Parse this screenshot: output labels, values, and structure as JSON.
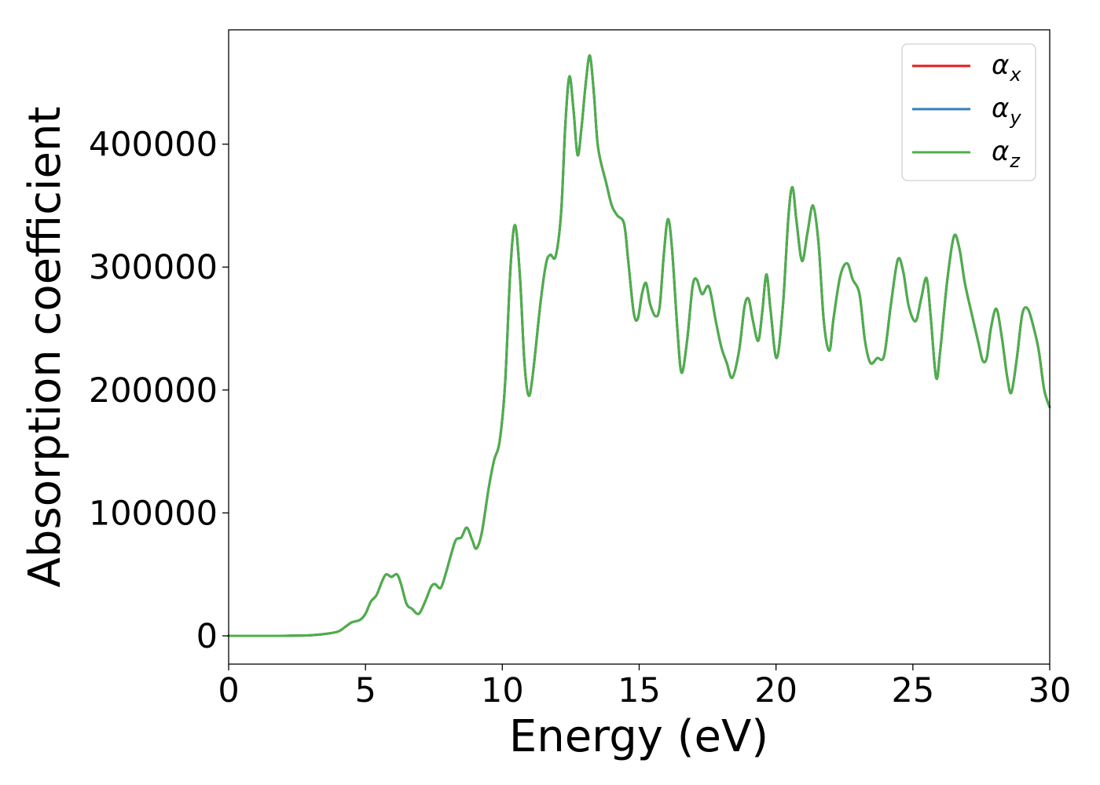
{
  "chart_data": {
    "type": "line",
    "title": "",
    "xlabel": "Energy (eV)",
    "ylabel": "Absorption coefficient",
    "xlim": [
      0,
      30
    ],
    "ylim": [
      -23000,
      493000
    ],
    "xticks": [
      0,
      5,
      10,
      15,
      20,
      25,
      30
    ],
    "yticks": [
      0,
      100000,
      200000,
      300000,
      400000
    ],
    "grid": false,
    "legend_position": "top-right",
    "series": [
      {
        "name": "α",
        "subscript": "x",
        "color": "#e41a1c",
        "ref": "z"
      },
      {
        "name": "α",
        "subscript": "y",
        "color": "#377eb8",
        "ref": "z"
      },
      {
        "name": "α",
        "subscript": "z",
        "color": "#4daf4a",
        "points": [
          [
            0,
            0
          ],
          [
            1,
            0
          ],
          [
            2,
            0
          ],
          [
            2.5,
            200
          ],
          [
            3,
            500
          ],
          [
            3.5,
            1500
          ],
          [
            4,
            3500
          ],
          [
            4.3,
            8000
          ],
          [
            4.5,
            11000
          ],
          [
            4.8,
            13000
          ],
          [
            5,
            18000
          ],
          [
            5.2,
            28000
          ],
          [
            5.4,
            33000
          ],
          [
            5.6,
            44000
          ],
          [
            5.75,
            50000
          ],
          [
            5.95,
            48000
          ],
          [
            6.15,
            50000
          ],
          [
            6.3,
            42000
          ],
          [
            6.5,
            26000
          ],
          [
            6.7,
            22000
          ],
          [
            6.95,
            18000
          ],
          [
            7.2,
            29000
          ],
          [
            7.4,
            40000
          ],
          [
            7.55,
            42000
          ],
          [
            7.75,
            39000
          ],
          [
            7.95,
            52000
          ],
          [
            8.1,
            64000
          ],
          [
            8.3,
            78000
          ],
          [
            8.5,
            80000
          ],
          [
            8.7,
            88000
          ],
          [
            8.9,
            78000
          ],
          [
            9.05,
            71000
          ],
          [
            9.25,
            84000
          ],
          [
            9.5,
            120000
          ],
          [
            9.7,
            143000
          ],
          [
            9.9,
            158000
          ],
          [
            10.1,
            205000
          ],
          [
            10.3,
            300000
          ],
          [
            10.47,
            334000
          ],
          [
            10.65,
            290000
          ],
          [
            10.8,
            225000
          ],
          [
            10.95,
            196000
          ],
          [
            11.1,
            210000
          ],
          [
            11.4,
            272000
          ],
          [
            11.6,
            303000
          ],
          [
            11.75,
            310000
          ],
          [
            11.95,
            309000
          ],
          [
            12.15,
            345000
          ],
          [
            12.3,
            415000
          ],
          [
            12.45,
            455000
          ],
          [
            12.6,
            428000
          ],
          [
            12.75,
            391000
          ],
          [
            12.9,
            415000
          ],
          [
            13.05,
            450000
          ],
          [
            13.2,
            472000
          ],
          [
            13.35,
            440000
          ],
          [
            13.5,
            397000
          ],
          [
            13.8,
            368000
          ],
          [
            14,
            350000
          ],
          [
            14.2,
            342000
          ],
          [
            14.45,
            335000
          ],
          [
            14.6,
            305000
          ],
          [
            14.8,
            263000
          ],
          [
            14.95,
            258000
          ],
          [
            15.1,
            278000
          ],
          [
            15.25,
            287000
          ],
          [
            15.4,
            270000
          ],
          [
            15.6,
            260000
          ],
          [
            15.75,
            268000
          ],
          [
            15.9,
            310000
          ],
          [
            16.05,
            339000
          ],
          [
            16.2,
            315000
          ],
          [
            16.4,
            248000
          ],
          [
            16.55,
            214000
          ],
          [
            16.75,
            240000
          ],
          [
            16.95,
            284000
          ],
          [
            17.1,
            290000
          ],
          [
            17.3,
            278000
          ],
          [
            17.55,
            284000
          ],
          [
            17.8,
            256000
          ],
          [
            18,
            235000
          ],
          [
            18.2,
            222000
          ],
          [
            18.4,
            210000
          ],
          [
            18.65,
            232000
          ],
          [
            18.85,
            268000
          ],
          [
            19,
            274000
          ],
          [
            19.15,
            257000
          ],
          [
            19.35,
            240000
          ],
          [
            19.5,
            264000
          ],
          [
            19.65,
            294000
          ],
          [
            19.8,
            265000
          ],
          [
            20.02,
            226000
          ],
          [
            20.25,
            268000
          ],
          [
            20.45,
            340000
          ],
          [
            20.6,
            365000
          ],
          [
            20.75,
            337000
          ],
          [
            20.95,
            305000
          ],
          [
            21.15,
            328000
          ],
          [
            21.35,
            350000
          ],
          [
            21.55,
            320000
          ],
          [
            21.75,
            255000
          ],
          [
            21.95,
            232000
          ],
          [
            22.1,
            258000
          ],
          [
            22.35,
            293000
          ],
          [
            22.6,
            303000
          ],
          [
            22.8,
            290000
          ],
          [
            23.05,
            278000
          ],
          [
            23.25,
            240000
          ],
          [
            23.45,
            222000
          ],
          [
            23.7,
            226000
          ],
          [
            23.95,
            228000
          ],
          [
            24.2,
            270000
          ],
          [
            24.45,
            306000
          ],
          [
            24.65,
            296000
          ],
          [
            24.85,
            268000
          ],
          [
            25.1,
            256000
          ],
          [
            25.3,
            274000
          ],
          [
            25.5,
            291000
          ],
          [
            25.65,
            260000
          ],
          [
            25.85,
            210000
          ],
          [
            26,
            232000
          ],
          [
            26.25,
            288000
          ],
          [
            26.5,
            325000
          ],
          [
            26.7,
            315000
          ],
          [
            26.9,
            287000
          ],
          [
            27.15,
            262000
          ],
          [
            27.4,
            238000
          ],
          [
            27.55,
            224000
          ],
          [
            27.7,
            226000
          ],
          [
            27.85,
            250000
          ],
          [
            28.05,
            266000
          ],
          [
            28.25,
            243000
          ],
          [
            28.45,
            210000
          ],
          [
            28.6,
            198000
          ],
          [
            28.8,
            226000
          ],
          [
            29,
            262000
          ],
          [
            29.2,
            266000
          ],
          [
            29.4,
            252000
          ],
          [
            29.6,
            232000
          ],
          [
            29.8,
            200000
          ],
          [
            30,
            186000
          ]
        ]
      }
    ]
  }
}
